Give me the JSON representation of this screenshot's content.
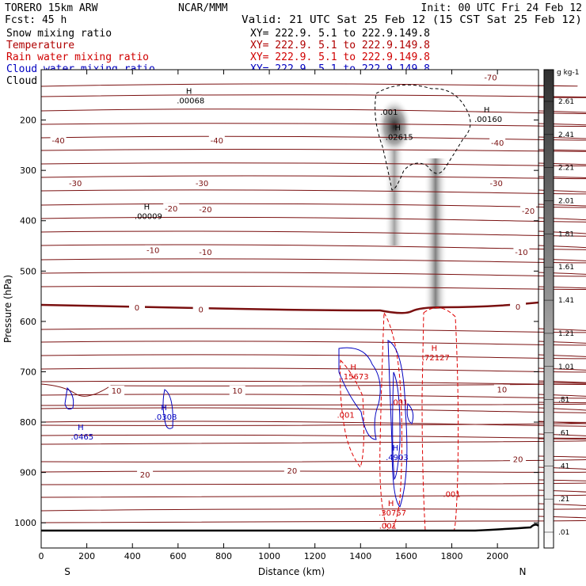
{
  "header": {
    "model": "TORERO  15km ARW",
    "org": "NCAR/MMM",
    "init": "Init: 00 UTC Fri 24 Feb 12",
    "forecast": "Fcst:   45 h",
    "valid": "Valid: 21 UTC Sat 25 Feb 12 (15 CST Sat 25 Feb 12)",
    "fields": [
      {
        "name": "Snow mixing ratio",
        "color": "#000000"
      },
      {
        "name": "Temperature",
        "color": "#b00000"
      },
      {
        "name": "Rain water mixing ratio",
        "color": "#d00000"
      },
      {
        "name": "Cloud water mixing ratio",
        "color": "#0000c0"
      },
      {
        "name": "Cloud ice mixing ratio",
        "color": "#000000"
      }
    ],
    "xsection": "XY= 222.9.   5.1 to 222.9.149.8"
  },
  "colorbar": {
    "unit": "g kg-1",
    "labels": [
      "2.61",
      "2.41",
      "2.21",
      "2.01",
      "1.81",
      "1.61",
      "1.41",
      "1.21",
      "1.01",
      ".81",
      ".61",
      ".41",
      ".21",
      ".01"
    ]
  },
  "chart_data": {
    "type": "contour cross-section",
    "xlabel": "Distance (km)",
    "ylabel": "Pressure (hPa)",
    "x_ticks": [
      0,
      200,
      400,
      600,
      800,
      1000,
      1200,
      1400,
      1600,
      1800,
      2000
    ],
    "y_ticks": [
      200,
      300,
      400,
      500,
      600,
      700,
      800,
      900,
      1000
    ],
    "xlim": [
      0,
      2180
    ],
    "ylim": [
      1050,
      100
    ],
    "x_end_labels": {
      "left": "S",
      "right": "N"
    },
    "temperature_labels": [
      {
        "value": "-70",
        "x": 1970,
        "p": 115
      },
      {
        "value": "-40",
        "x": 75,
        "p": 240
      },
      {
        "value": "-40",
        "x": 770,
        "p": 240
      },
      {
        "value": "-40",
        "x": 2000,
        "p": 245
      },
      {
        "value": "-30",
        "x": 150,
        "p": 325
      },
      {
        "value": "-30",
        "x": 705,
        "p": 325
      },
      {
        "value": "-30",
        "x": 1995,
        "p": 325
      },
      {
        "value": "-20",
        "x": 570,
        "p": 375
      },
      {
        "value": "-20",
        "x": 720,
        "p": 377
      },
      {
        "value": "-20",
        "x": 2135,
        "p": 380
      },
      {
        "value": "-10",
        "x": 490,
        "p": 458
      },
      {
        "value": "-10",
        "x": 720,
        "p": 462
      },
      {
        "value": "-10",
        "x": 2105,
        "p": 462
      },
      {
        "value": "0",
        "x": 420,
        "p": 572
      },
      {
        "value": "0",
        "x": 700,
        "p": 576
      },
      {
        "value": "0",
        "x": 2090,
        "p": 570
      },
      {
        "value": "10",
        "x": 330,
        "p": 737
      },
      {
        "value": "10",
        "x": 860,
        "p": 737
      },
      {
        "value": "10",
        "x": 2020,
        "p": 735
      },
      {
        "value": "20",
        "x": 455,
        "p": 904
      },
      {
        "value": "20",
        "x": 1100,
        "p": 896
      },
      {
        "value": "20",
        "x": 2090,
        "p": 873
      }
    ],
    "maxima": [
      {
        "label": ".00068",
        "x": 655,
        "p": 164,
        "color": "#000000"
      },
      {
        "label": ".02615",
        "x": 1570,
        "p": 236,
        "color": "#000000"
      },
      {
        "label": ".00160",
        "x": 1960,
        "p": 201,
        "color": "#000000"
      },
      {
        "label": ".00009",
        "x": 470,
        "p": 393,
        "color": "#000000"
      },
      {
        "label": ".0465",
        "x": 180,
        "p": 831,
        "color": "#0000c0"
      },
      {
        "label": ".0308",
        "x": 545,
        "p": 792,
        "color": "#0000c0"
      },
      {
        "label": ".15673",
        "x": 1375,
        "p": 712,
        "color": "#d00000"
      },
      {
        "label": ".72127",
        "x": 1730,
        "p": 674,
        "color": "#d00000"
      },
      {
        "label": ".30757",
        "x": 1540,
        "p": 982,
        "color": "#d00000"
      },
      {
        "label": ".4903",
        "x": 1560,
        "p": 872,
        "color": "#0000c0"
      }
    ],
    "min_labels": [
      {
        "label": ".001",
        "x": 1525,
        "p": 183,
        "color": "#000000"
      },
      {
        "label": ".001",
        "x": 1335,
        "p": 785,
        "color": "#d00000"
      },
      {
        "label": ".001",
        "x": 1800,
        "p": 942,
        "color": "#d00000"
      },
      {
        "label": ".001",
        "x": 1520,
        "p": 1005,
        "color": "#d00000"
      },
      {
        "label": ".001",
        "x": 1570,
        "p": 760,
        "color": "#d00000"
      }
    ]
  }
}
